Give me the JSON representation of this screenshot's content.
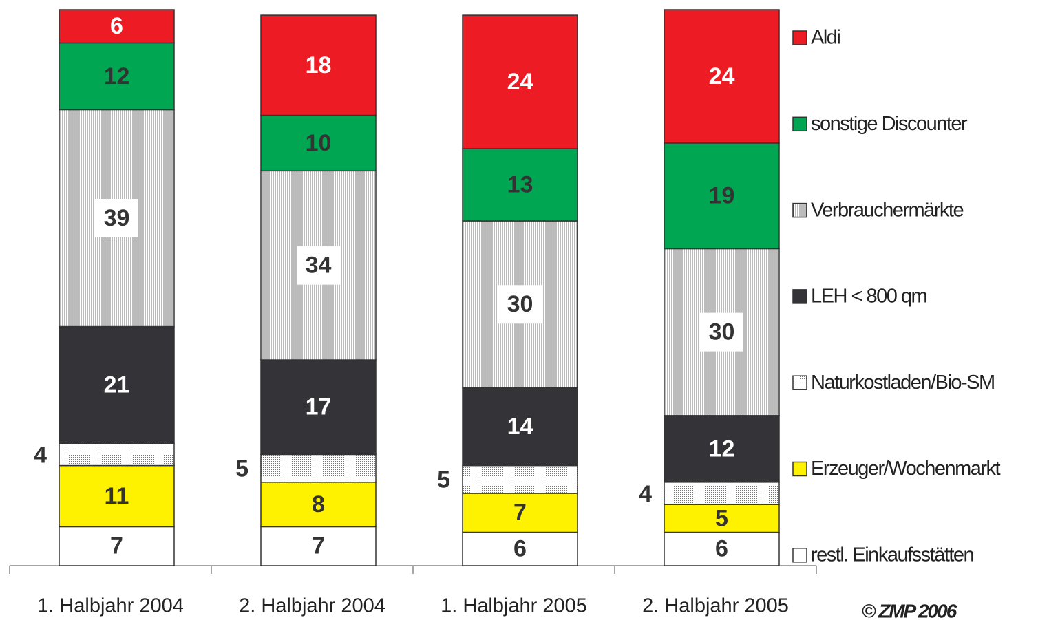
{
  "chart_data": {
    "type": "stacked_bar",
    "categories": [
      "1. Halbjahr 2004",
      "2. Halbjahr 2004",
      "1. Halbjahr 2005",
      "2. Halbjahr 2005"
    ],
    "series": [
      {
        "name": "restl. Einkaufsstätten",
        "color": "#ffffff",
        "values": [
          7,
          7,
          6,
          6
        ]
      },
      {
        "name": "Erzeuger/Wochenmarkt",
        "color": "#fff200",
        "values": [
          11,
          8,
          7,
          5
        ]
      },
      {
        "name": "Naturkostladen/Bio-SM",
        "color": "#ffffff",
        "pattern": "dots",
        "label_outside": true,
        "values": [
          4,
          5,
          5,
          4
        ]
      },
      {
        "name": "LEH < 800 qm",
        "color": "#333338",
        "values": [
          21,
          17,
          14,
          12
        ]
      },
      {
        "name": "Verbrauchermärkte",
        "color": "#ffffff",
        "pattern": "vertical-lines",
        "values": [
          39,
          34,
          30,
          30
        ]
      },
      {
        "name": "sonstige Discounter",
        "color": "#00a651",
        "values": [
          12,
          10,
          13,
          19
        ]
      },
      {
        "name": "Aldi",
        "color": "#ed1c24",
        "values": [
          6,
          18,
          24,
          24
        ]
      }
    ],
    "ylim": [
      0,
      100
    ],
    "legend": "right",
    "source": "© ZMP 2006"
  }
}
